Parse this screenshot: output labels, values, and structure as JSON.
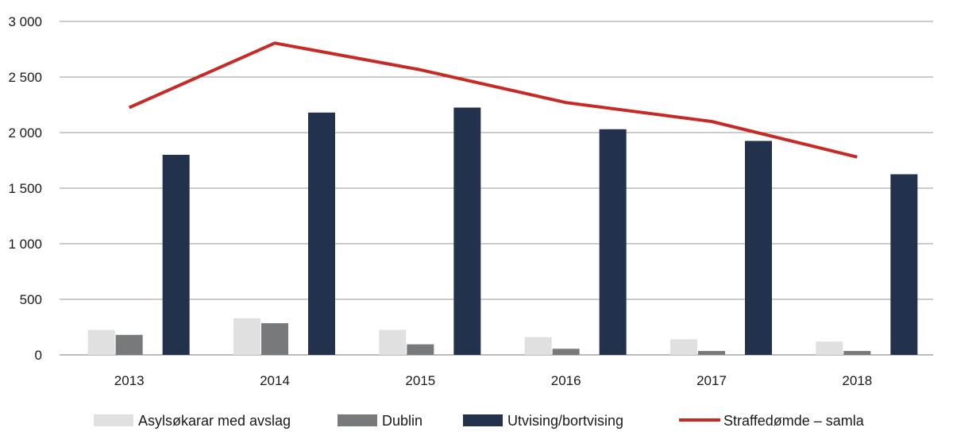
{
  "chart_data": {
    "type": "bar",
    "title": "",
    "xlabel": "",
    "ylabel": "",
    "ylim": [
      0,
      3000
    ],
    "yticks": [
      {
        "value": 0,
        "label": "0"
      },
      {
        "value": 500,
        "label": "500"
      },
      {
        "value": 1000,
        "label": "1 000"
      },
      {
        "value": 1500,
        "label": "1 500"
      },
      {
        "value": 2000,
        "label": "2 000"
      },
      {
        "value": 2500,
        "label": "2 500"
      },
      {
        "value": 3000,
        "label": "3 000"
      }
    ],
    "categories": [
      "2013",
      "2014",
      "2015",
      "2016",
      "2017",
      "2018"
    ],
    "series": [
      {
        "name": "Asylsøkarar med avslag",
        "type": "bar",
        "color": "#e0e0e0",
        "values": [
          225,
          330,
          225,
          160,
          140,
          120
        ]
      },
      {
        "name": "Dublin",
        "type": "bar",
        "color": "#77797b",
        "values": [
          180,
          285,
          95,
          55,
          35,
          35
        ]
      },
      {
        "name": "Utvising/bortvising",
        "type": "bar",
        "color": "#22324c",
        "values": [
          1800,
          2180,
          2225,
          2030,
          1925,
          1625
        ]
      },
      {
        "name": "Straffedømde – samla",
        "type": "line",
        "color": "#c72a25",
        "values": [
          2225,
          2805,
          2565,
          2270,
          2100,
          1780
        ]
      }
    ],
    "grid": true,
    "legend": "bottom"
  }
}
